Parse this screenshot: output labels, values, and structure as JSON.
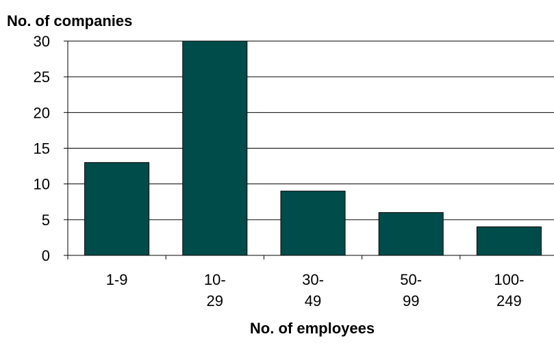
{
  "chart_data": {
    "type": "bar",
    "categories": [
      [
        "1-9"
      ],
      [
        "10-",
        "29"
      ],
      [
        "30-",
        "49"
      ],
      [
        "50-",
        "99"
      ],
      [
        "100-",
        "249"
      ]
    ],
    "values": [
      13,
      30,
      9,
      6,
      4
    ],
    "title": "",
    "xlabel": "No. of employees",
    "ylabel": "No. of companies",
    "ylim": [
      0,
      30
    ],
    "yticks": [
      0,
      5,
      10,
      15,
      20,
      25,
      30
    ],
    "grid": true,
    "legend": "none",
    "colors": {
      "bar": "#004c4a",
      "bar_edge": "#000000",
      "grid": "#000000",
      "axis": "#000000"
    }
  }
}
